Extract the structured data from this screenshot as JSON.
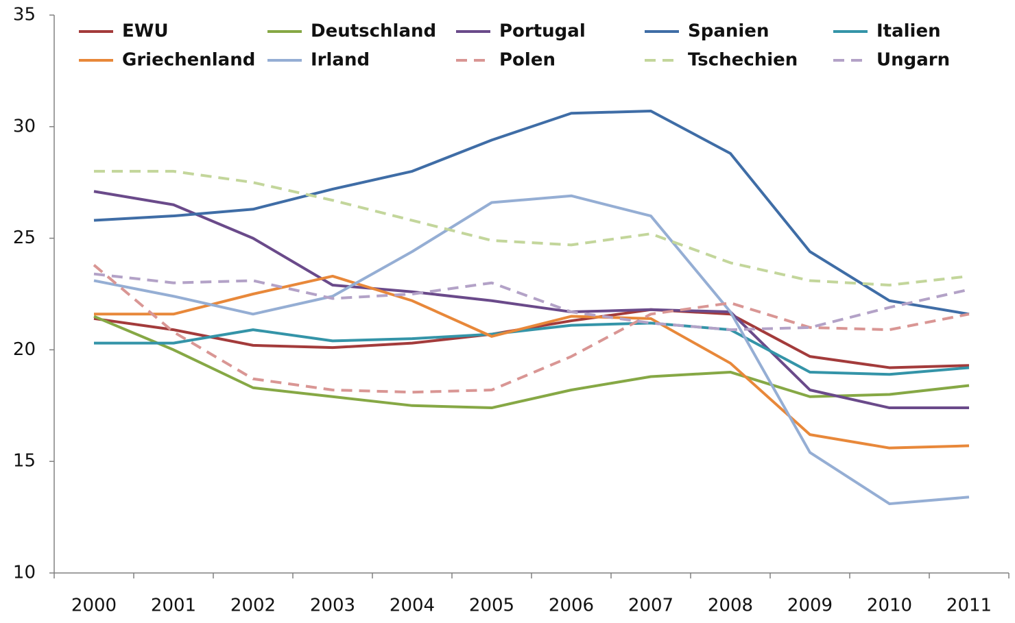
{
  "chart_data": {
    "type": "line",
    "categories": [
      "2000",
      "2001",
      "2002",
      "2003",
      "2004",
      "2005",
      "2006",
      "2007",
      "2008",
      "2009",
      "2010",
      "2011"
    ],
    "ylim": [
      10,
      35
    ],
    "yticks": [
      10,
      15,
      20,
      25,
      30,
      35
    ],
    "grid": false,
    "legend": "top",
    "series": [
      {
        "name": "EWU",
        "color": "#A33B3B",
        "dashed": false,
        "values": [
          21.4,
          20.9,
          20.2,
          20.1,
          20.3,
          20.7,
          21.3,
          21.8,
          21.6,
          19.7,
          19.2,
          19.3
        ]
      },
      {
        "name": "Deutschland",
        "color": "#86A845",
        "dashed": false,
        "values": [
          21.5,
          20.0,
          18.3,
          17.9,
          17.5,
          17.4,
          18.2,
          18.8,
          19.0,
          17.9,
          18.0,
          18.4
        ]
      },
      {
        "name": "Portugal",
        "color": "#6A4A8A",
        "dashed": false,
        "values": [
          27.1,
          26.5,
          25.0,
          22.9,
          22.6,
          22.2,
          21.7,
          21.8,
          21.7,
          18.2,
          17.4,
          17.4
        ]
      },
      {
        "name": "Spanien",
        "color": "#3F6DA6",
        "dashed": false,
        "values": [
          25.8,
          26.0,
          26.3,
          27.2,
          28.0,
          29.4,
          30.6,
          30.7,
          28.8,
          24.4,
          22.2,
          21.6
        ]
      },
      {
        "name": "Italien",
        "color": "#3494A8",
        "dashed": false,
        "values": [
          20.3,
          20.3,
          20.9,
          20.4,
          20.5,
          20.7,
          21.1,
          21.2,
          20.9,
          19.0,
          18.9,
          19.2
        ]
      },
      {
        "name": "Griechenland",
        "color": "#E8883A",
        "dashed": false,
        "values": [
          21.6,
          21.6,
          22.5,
          23.3,
          22.2,
          20.6,
          21.5,
          21.4,
          19.4,
          16.2,
          15.6,
          15.7
        ]
      },
      {
        "name": "Irland",
        "color": "#95AED4",
        "dashed": false,
        "values": [
          23.1,
          22.4,
          21.6,
          22.4,
          24.4,
          26.6,
          26.9,
          26.0,
          21.7,
          15.4,
          13.1,
          13.4
        ]
      },
      {
        "name": "Polen",
        "color": "#D99694",
        "dashed": true,
        "values": [
          23.8,
          20.8,
          18.7,
          18.2,
          18.1,
          18.2,
          19.7,
          21.6,
          22.1,
          21.0,
          20.9,
          21.6
        ]
      },
      {
        "name": "Tschechien",
        "color": "#C3D69B",
        "dashed": true,
        "values": [
          28.0,
          28.0,
          27.5,
          26.7,
          25.8,
          24.9,
          24.7,
          25.2,
          23.9,
          23.1,
          22.9,
          23.3
        ]
      },
      {
        "name": "Ungarn",
        "color": "#B3A2C7",
        "dashed": true,
        "values": [
          23.4,
          23.0,
          23.1,
          22.3,
          22.5,
          23.0,
          21.7,
          21.2,
          20.9,
          21.0,
          21.9,
          22.7
        ]
      }
    ]
  }
}
